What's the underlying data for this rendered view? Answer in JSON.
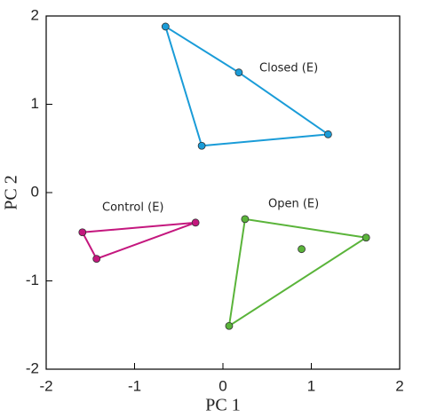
{
  "chart_data": {
    "type": "scatter",
    "xlabel": "PC 1",
    "ylabel": "PC 2",
    "xlim": [
      -2,
      2
    ],
    "ylim": [
      -2,
      2
    ],
    "xticks": [
      -2,
      -1,
      0,
      1,
      2
    ],
    "yticks": [
      -2,
      -1,
      0,
      1,
      2
    ],
    "series": [
      {
        "name": "Closed (E)",
        "color": "#1a9cd8",
        "x": [
          -0.65,
          0.18,
          -0.24,
          1.19
        ],
        "y": [
          1.88,
          1.36,
          0.53,
          0.66
        ]
      },
      {
        "name": "Control (E)",
        "color": "#c4177e",
        "x": [
          -1.59,
          -0.31,
          -1.43
        ],
        "y": [
          -0.45,
          -0.34,
          -0.75
        ]
      },
      {
        "name": "Open (E)",
        "color": "#5ab43a",
        "x": [
          0.25,
          1.62,
          0.07,
          0.89
        ],
        "y": [
          -0.3,
          -0.51,
          -1.51,
          -0.64
        ]
      }
    ]
  }
}
